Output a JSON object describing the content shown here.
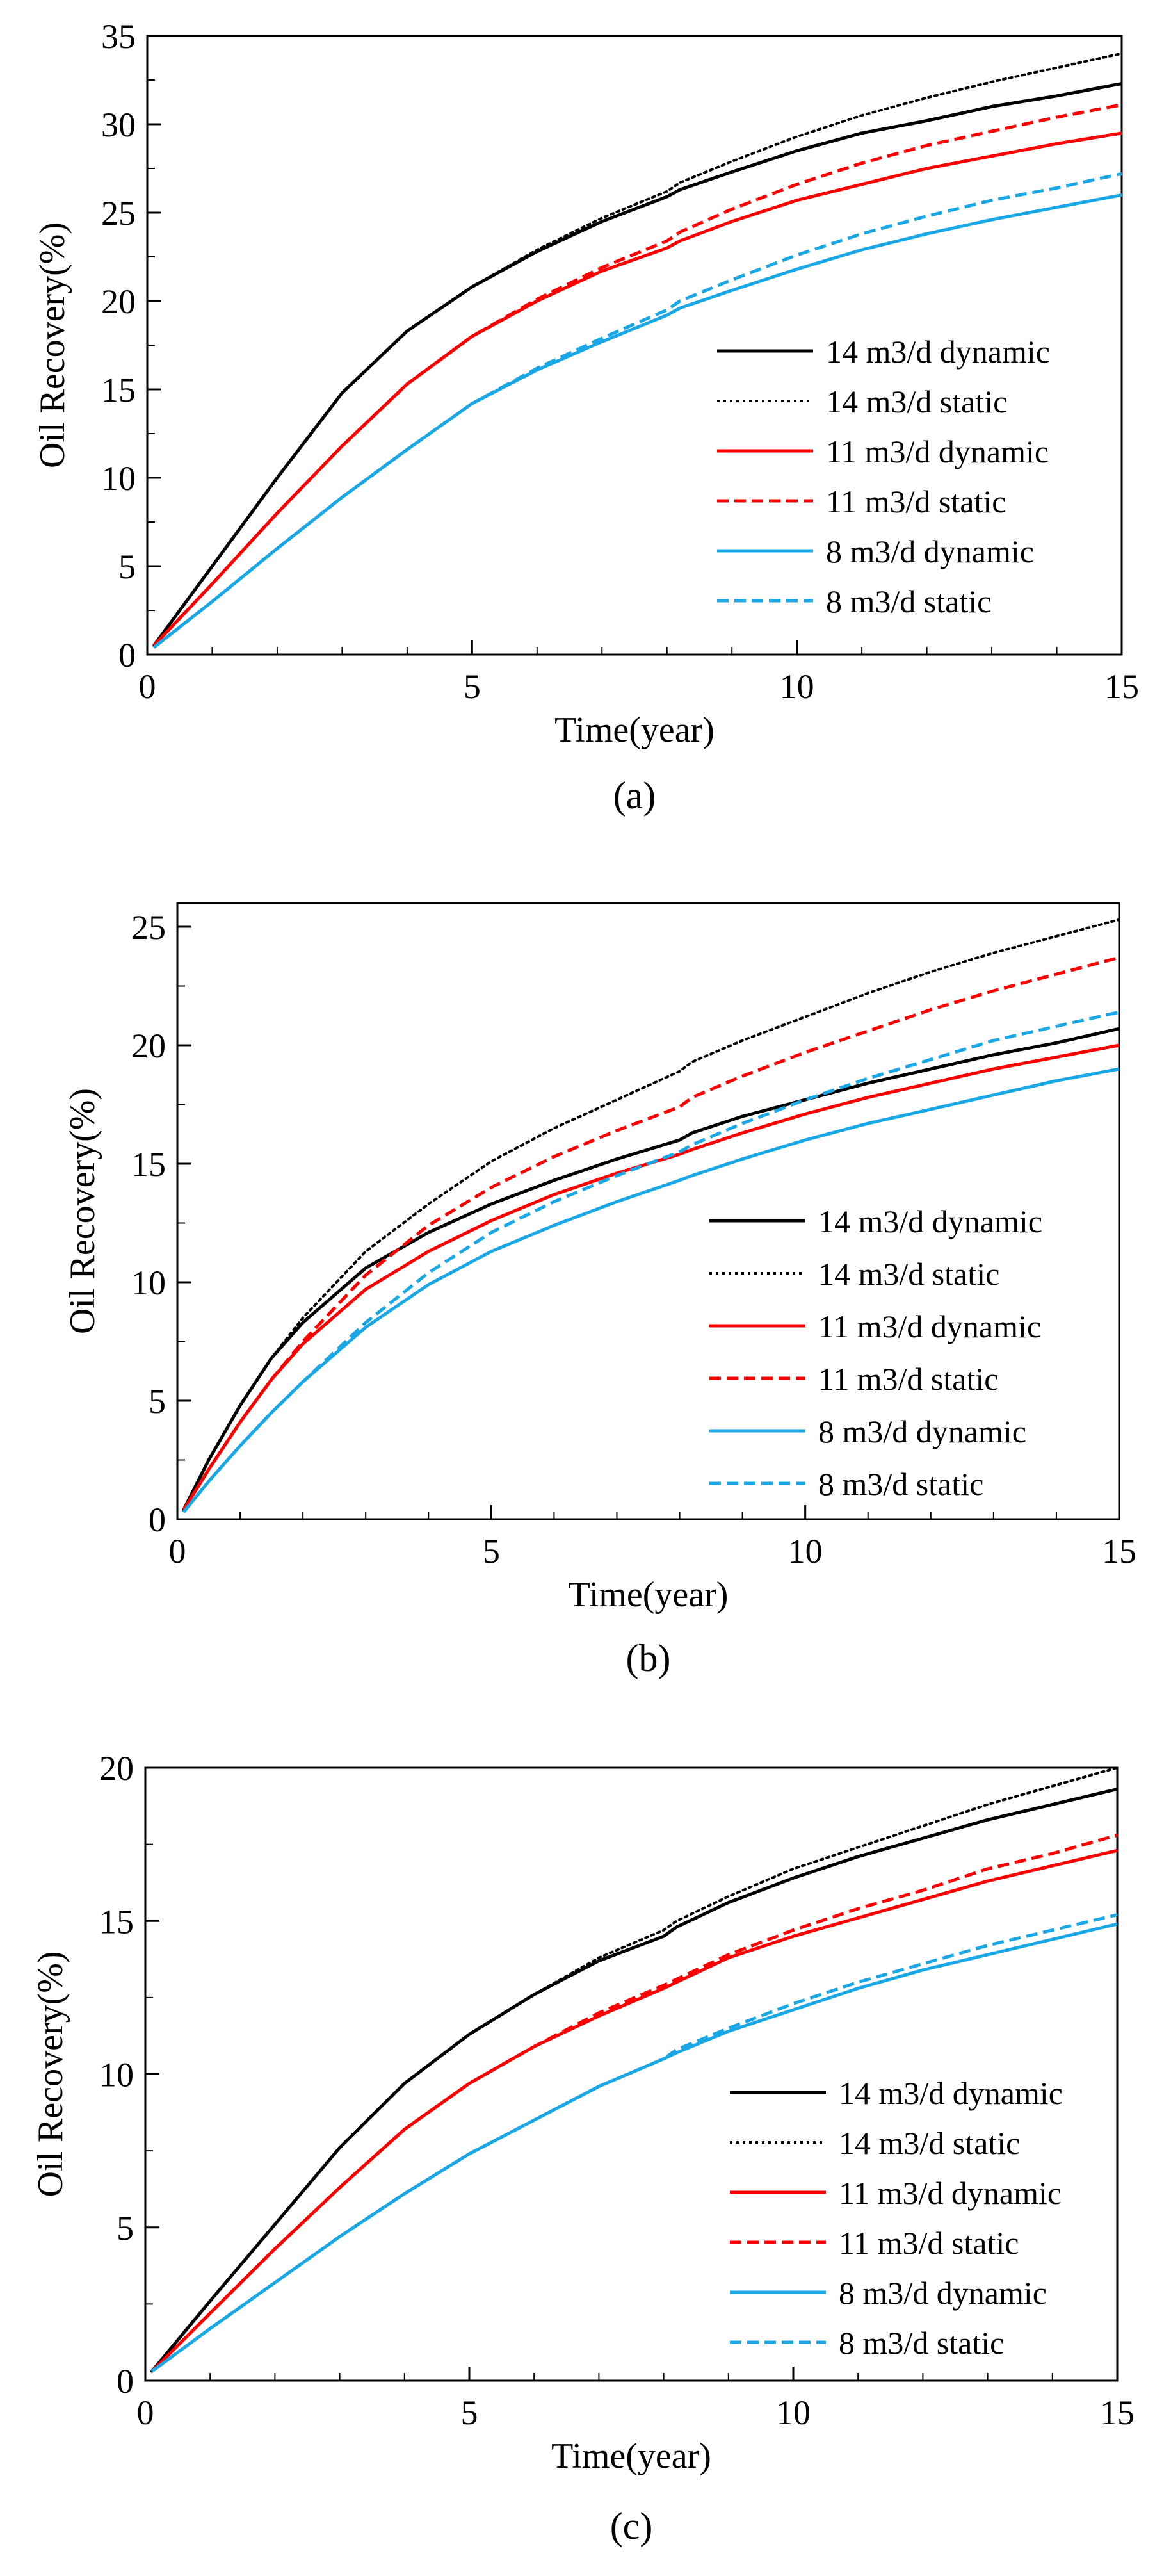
{
  "colors": {
    "black": "#000000",
    "red": "#ff0000",
    "blue": "#1aa7e6"
  },
  "chart_data": [
    {
      "type": "line",
      "panel_label": "(a)",
      "label_letter": "a",
      "xlabel": "Time(year)",
      "ylabel": "Oil  Recovery(%)",
      "xlim": [
        0,
        15
      ],
      "ylim": [
        0,
        35
      ],
      "xticks": [
        0,
        5,
        10,
        15
      ],
      "yticks": [
        0,
        5,
        10,
        15,
        20,
        25,
        30,
        35
      ],
      "legend_position": "right",
      "series": [
        {
          "name": "14  m3/d  dynamic",
          "rate": "14",
          "mode": "dynamic",
          "color": "black",
          "style": "solid",
          "x": [
            0.1,
            1,
            2,
            3,
            4,
            5,
            6,
            7,
            8,
            8.2,
            9,
            10,
            11,
            12,
            13,
            14,
            15
          ],
          "y": [
            0.5,
            5.0,
            10.0,
            14.8,
            18.3,
            20.8,
            22.8,
            24.5,
            25.9,
            26.3,
            27.3,
            28.5,
            29.5,
            30.2,
            31.0,
            31.6,
            32.3
          ]
        },
        {
          "name": "14  m3/d  static",
          "rate": "14",
          "mode": "static",
          "color": "black",
          "style": "dotted",
          "x": [
            0.1,
            1,
            2,
            3,
            4,
            5,
            6,
            7,
            8,
            8.2,
            9,
            10,
            11,
            12,
            13,
            14,
            15
          ],
          "y": [
            0.5,
            5.0,
            10.0,
            14.8,
            18.3,
            20.8,
            22.9,
            24.7,
            26.2,
            26.7,
            27.9,
            29.3,
            30.5,
            31.5,
            32.4,
            33.2,
            34.0
          ]
        },
        {
          "name": "11  m3/d  dynamic",
          "rate": "11",
          "mode": "dynamic",
          "color": "red",
          "style": "solid",
          "x": [
            0.1,
            1,
            2,
            3,
            4,
            5,
            6,
            7,
            8,
            8.2,
            9,
            10,
            11,
            12,
            13,
            14,
            15
          ],
          "y": [
            0.5,
            4.0,
            8.0,
            11.8,
            15.3,
            18.0,
            20.0,
            21.7,
            23.0,
            23.4,
            24.5,
            25.7,
            26.6,
            27.5,
            28.2,
            28.9,
            29.5
          ]
        },
        {
          "name": "11  m3/d  static",
          "rate": "11",
          "mode": "static",
          "color": "red",
          "style": "dashed",
          "x": [
            0.1,
            1,
            2,
            3,
            4,
            5,
            6,
            7,
            8,
            8.2,
            9,
            10,
            11,
            12,
            13,
            14,
            15
          ],
          "y": [
            0.5,
            4.0,
            8.0,
            11.8,
            15.3,
            18.0,
            20.1,
            21.9,
            23.4,
            23.9,
            25.2,
            26.6,
            27.8,
            28.8,
            29.6,
            30.4,
            31.1
          ]
        },
        {
          "name": "8  m3/d  dynamic",
          "rate": "8",
          "mode": "dynamic",
          "color": "blue",
          "style": "solid",
          "x": [
            0.1,
            1,
            2,
            3,
            4,
            5,
            6,
            7,
            8,
            8.2,
            9,
            10,
            11,
            12,
            13,
            14,
            15
          ],
          "y": [
            0.4,
            3.0,
            6.0,
            8.9,
            11.6,
            14.2,
            16.1,
            17.7,
            19.2,
            19.6,
            20.6,
            21.8,
            22.9,
            23.8,
            24.6,
            25.3,
            26.0
          ]
        },
        {
          "name": "8  m3/d  static",
          "rate": "8",
          "mode": "static",
          "color": "blue",
          "style": "dashed",
          "x": [
            0.1,
            1,
            2,
            3,
            4,
            5,
            6,
            7,
            8,
            8.2,
            9,
            10,
            11,
            12,
            13,
            14,
            15
          ],
          "y": [
            0.4,
            3.0,
            6.0,
            8.9,
            11.6,
            14.2,
            16.2,
            17.9,
            19.5,
            20.0,
            21.2,
            22.6,
            23.8,
            24.8,
            25.7,
            26.4,
            27.2
          ]
        }
      ]
    },
    {
      "type": "line",
      "panel_label": "(b)",
      "label_letter": "b",
      "xlabel": "Time(year)",
      "ylabel": "Oil Recovery(%)",
      "xlim": [
        0,
        15
      ],
      "ylim": [
        0,
        26
      ],
      "xticks": [
        0,
        5,
        10,
        15
      ],
      "yticks": [
        0,
        5,
        10,
        15,
        20,
        25
      ],
      "legend_position": "right",
      "series": [
        {
          "name": "14  m3/d  dynamic",
          "rate": "14",
          "mode": "dynamic",
          "color": "black",
          "style": "solid",
          "x": [
            0.1,
            0.5,
            1,
            1.5,
            2,
            3,
            4,
            5,
            6,
            7,
            8,
            8.2,
            9,
            10,
            11,
            12,
            13,
            14,
            15
          ],
          "y": [
            0.4,
            2.5,
            4.8,
            6.8,
            8.3,
            10.6,
            12.1,
            13.3,
            14.3,
            15.2,
            16.0,
            16.3,
            17.0,
            17.7,
            18.4,
            19.0,
            19.6,
            20.1,
            20.7
          ]
        },
        {
          "name": "14  m3/d  static",
          "rate": "14",
          "mode": "static",
          "color": "black",
          "style": "dotted",
          "x": [
            0.1,
            0.5,
            1,
            1.5,
            2,
            3,
            4,
            5,
            6,
            7,
            8,
            8.2,
            9,
            10,
            11,
            12,
            13,
            14,
            15
          ],
          "y": [
            0.4,
            2.5,
            4.8,
            6.8,
            8.5,
            11.3,
            13.3,
            15.1,
            16.5,
            17.7,
            18.9,
            19.3,
            20.2,
            21.2,
            22.2,
            23.1,
            23.9,
            24.6,
            25.3
          ]
        },
        {
          "name": "11  m3/d  dynamic",
          "rate": "11",
          "mode": "dynamic",
          "color": "red",
          "style": "solid",
          "x": [
            0.1,
            0.5,
            1,
            1.5,
            2,
            3,
            4,
            5,
            6,
            7,
            8,
            8.2,
            9,
            10,
            11,
            12,
            13,
            14,
            15
          ],
          "y": [
            0.4,
            2.1,
            4.1,
            5.9,
            7.4,
            9.7,
            11.3,
            12.6,
            13.7,
            14.6,
            15.4,
            15.6,
            16.3,
            17.1,
            17.8,
            18.4,
            19.0,
            19.5,
            20.0
          ]
        },
        {
          "name": "11  m3/d  static",
          "rate": "11",
          "mode": "static",
          "color": "red",
          "style": "dashed",
          "x": [
            0.1,
            0.5,
            1,
            1.5,
            2,
            3,
            4,
            5,
            6,
            7,
            8,
            8.2,
            9,
            10,
            11,
            12,
            13,
            14,
            15
          ],
          "y": [
            0.4,
            2.1,
            4.1,
            5.9,
            7.5,
            10.3,
            12.4,
            14.0,
            15.3,
            16.4,
            17.4,
            17.8,
            18.7,
            19.7,
            20.6,
            21.5,
            22.3,
            23.0,
            23.7
          ]
        },
        {
          "name": "8  m3/d  dynamic",
          "rate": "8",
          "mode": "dynamic",
          "color": "blue",
          "style": "solid",
          "x": [
            0.1,
            0.5,
            1,
            1.5,
            2,
            3,
            4,
            5,
            6,
            7,
            8,
            8.2,
            9,
            10,
            11,
            12,
            13,
            14,
            15
          ],
          "y": [
            0.3,
            1.6,
            3.1,
            4.5,
            5.8,
            8.1,
            9.9,
            11.3,
            12.4,
            13.4,
            14.3,
            14.5,
            15.2,
            16.0,
            16.7,
            17.3,
            17.9,
            18.5,
            19.0
          ]
        },
        {
          "name": "8  m3/d  static",
          "rate": "8",
          "mode": "static",
          "color": "blue",
          "style": "dashed",
          "x": [
            0.1,
            0.5,
            1,
            1.5,
            2,
            3,
            4,
            5,
            6,
            7,
            8,
            8.2,
            9,
            10,
            11,
            12,
            13,
            14,
            15
          ],
          "y": [
            0.3,
            1.6,
            3.1,
            4.5,
            5.8,
            8.3,
            10.4,
            12.1,
            13.4,
            14.5,
            15.5,
            15.8,
            16.7,
            17.7,
            18.6,
            19.4,
            20.2,
            20.8,
            21.4
          ]
        }
      ]
    },
    {
      "type": "line",
      "panel_label": "(c)",
      "label_letter": "c",
      "xlabel": "Time(year)",
      "ylabel": "Oil  Recovery(%)",
      "xlim": [
        0,
        15
      ],
      "ylim": [
        0,
        20
      ],
      "xticks": [
        0,
        5,
        10,
        15
      ],
      "yticks": [
        0,
        5,
        10,
        15,
        20
      ],
      "legend_position": "right",
      "series": [
        {
          "name": "14  m3/d  dynamic",
          "rate": "14",
          "mode": "dynamic",
          "color": "black",
          "style": "solid",
          "x": [
            0.1,
            1,
            2,
            3,
            4,
            5,
            6,
            7,
            8,
            8.2,
            9,
            10,
            11,
            12,
            13,
            14,
            15
          ],
          "y": [
            0.3,
            2.6,
            5.1,
            7.6,
            9.7,
            11.3,
            12.6,
            13.7,
            14.5,
            14.8,
            15.6,
            16.4,
            17.1,
            17.7,
            18.3,
            18.8,
            19.3
          ]
        },
        {
          "name": "14  m3/d  static",
          "rate": "14",
          "mode": "static",
          "color": "black",
          "style": "dotted",
          "x": [
            0.1,
            1,
            2,
            3,
            4,
            5,
            6,
            7,
            8,
            8.2,
            9,
            10,
            11,
            12,
            13,
            14,
            15
          ],
          "y": [
            0.3,
            2.6,
            5.1,
            7.6,
            9.7,
            11.3,
            12.6,
            13.8,
            14.7,
            15.0,
            15.8,
            16.7,
            17.4,
            18.1,
            18.8,
            19.4,
            20.0
          ]
        },
        {
          "name": "11  m3/d  dynamic",
          "rate": "11",
          "mode": "dynamic",
          "color": "red",
          "style": "solid",
          "x": [
            0.1,
            1,
            2,
            3,
            4,
            5,
            6,
            7,
            8,
            8.2,
            9,
            10,
            11,
            12,
            13,
            14,
            15
          ],
          "y": [
            0.3,
            2.2,
            4.3,
            6.3,
            8.2,
            9.7,
            10.9,
            11.9,
            12.8,
            13.0,
            13.8,
            14.5,
            15.1,
            15.7,
            16.3,
            16.8,
            17.3
          ]
        },
        {
          "name": "11  m3/d  static",
          "rate": "11",
          "mode": "static",
          "color": "red",
          "style": "dashed",
          "x": [
            0.1,
            1,
            2,
            3,
            4,
            5,
            6,
            7,
            8,
            8.2,
            9,
            10,
            11,
            12,
            13,
            14,
            15
          ],
          "y": [
            0.3,
            2.2,
            4.3,
            6.3,
            8.2,
            9.7,
            10.9,
            12.0,
            12.9,
            13.1,
            13.9,
            14.7,
            15.4,
            16.0,
            16.7,
            17.2,
            17.8
          ]
        },
        {
          "name": "8  m3/d  dynamic",
          "rate": "8",
          "mode": "dynamic",
          "color": "blue",
          "style": "solid",
          "x": [
            0.1,
            1,
            2,
            3,
            4,
            5,
            6,
            7,
            8,
            8.2,
            9,
            10,
            11,
            12,
            13,
            14,
            15
          ],
          "y": [
            0.3,
            1.7,
            3.2,
            4.7,
            6.1,
            7.4,
            8.5,
            9.6,
            10.5,
            10.7,
            11.4,
            12.1,
            12.8,
            13.4,
            13.9,
            14.4,
            14.9
          ]
        },
        {
          "name": "8  m3/d  static",
          "rate": "8",
          "mode": "static",
          "color": "blue",
          "style": "dashed",
          "x": [
            0.1,
            1,
            2,
            3,
            4,
            5,
            6,
            7,
            8,
            8.2,
            9,
            10,
            11,
            12,
            13,
            14,
            15
          ],
          "y": [
            0.3,
            1.7,
            3.2,
            4.7,
            6.1,
            7.4,
            8.5,
            9.6,
            10.5,
            10.8,
            11.5,
            12.3,
            13.0,
            13.6,
            14.2,
            14.7,
            15.2
          ]
        }
      ]
    }
  ]
}
